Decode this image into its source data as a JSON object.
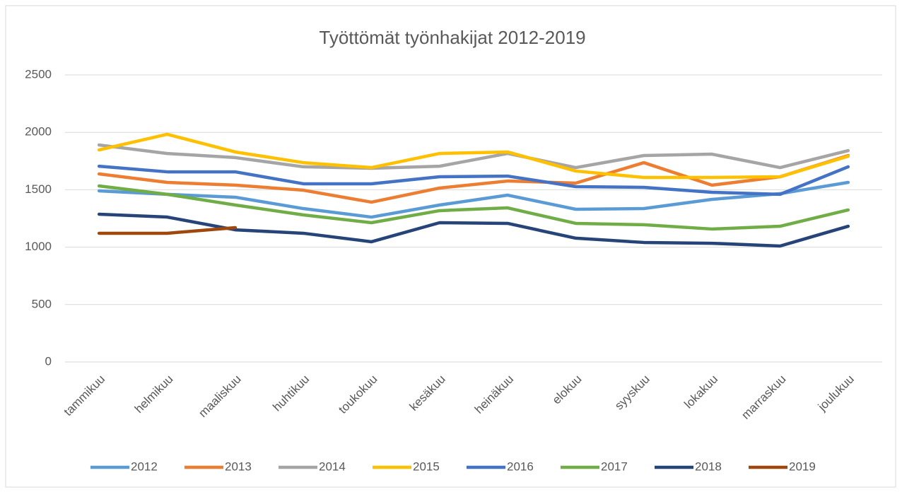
{
  "chart_data": {
    "type": "line",
    "title": "Työttömät työnhakijat 2012-2019",
    "categories": [
      "tammikuu",
      "helmikuu",
      "maaliskuu",
      "huhtikuu",
      "toukokuu",
      "kesäkuu",
      "heinäkuu",
      "elokuu",
      "syyskuu",
      "lokakuu",
      "marraskuu",
      "joulukuu"
    ],
    "series": [
      {
        "name": "2012",
        "color": "#5b9bd5",
        "values": [
          1490,
          1460,
          1435,
          1336,
          1262,
          1367,
          1453,
          1330,
          1336,
          1416,
          1466,
          1564
        ]
      },
      {
        "name": "2013",
        "color": "#ed7d31",
        "values": [
          1638,
          1564,
          1540,
          1496,
          1392,
          1515,
          1576,
          1558,
          1736,
          1540,
          1613,
          1798
        ]
      },
      {
        "name": "2014",
        "color": "#a5a5a5",
        "values": [
          1890,
          1816,
          1780,
          1700,
          1687,
          1705,
          1816,
          1693,
          1798,
          1810,
          1693,
          1841
        ]
      },
      {
        "name": "2015",
        "color": "#ffc000",
        "values": [
          1847,
          1983,
          1829,
          1736,
          1693,
          1816,
          1829,
          1663,
          1607,
          1607,
          1613,
          1792
        ]
      },
      {
        "name": "2016",
        "color": "#4472c4",
        "values": [
          1705,
          1656,
          1656,
          1552,
          1552,
          1613,
          1619,
          1527,
          1521,
          1478,
          1460,
          1700
        ]
      },
      {
        "name": "2017",
        "color": "#70ad47",
        "values": [
          1533,
          1460,
          1367,
          1281,
          1213,
          1318,
          1342,
          1207,
          1195,
          1158,
          1182,
          1324
        ]
      },
      {
        "name": "2018",
        "color": "#264478",
        "values": [
          1287,
          1262,
          1151,
          1121,
          1047,
          1213,
          1207,
          1078,
          1041,
          1034,
          1010,
          1182
        ]
      },
      {
        "name": "2019",
        "color": "#9e480e",
        "values": [
          1121,
          1121,
          1170,
          null,
          null,
          null,
          null,
          null,
          null,
          null,
          null,
          null
        ]
      }
    ],
    "ylim": [
      0,
      2500
    ],
    "yticks": [
      0,
      500,
      1000,
      1500,
      2000,
      2500
    ],
    "grid": true,
    "legend": "bottom"
  }
}
